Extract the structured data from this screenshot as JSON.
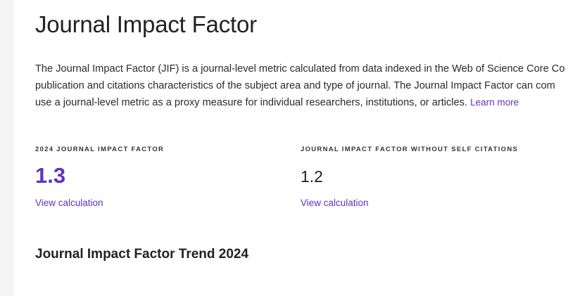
{
  "header": {
    "title": "Journal Impact Factor"
  },
  "description": {
    "line1": "The Journal Impact Factor (JIF) is a journal-level metric calculated from data indexed in the Web of Science Core Co",
    "line2": "publication and citations characteristics of the subject area and type of journal. The Journal Impact Factor can com",
    "line3": "use a journal-level metric as a proxy measure for individual researchers, institutions, or articles.",
    "learn_more": "Learn more"
  },
  "metrics": {
    "jif": {
      "label": "2024 JOURNAL IMPACT FACTOR",
      "value": "1.3",
      "link": "View calculation"
    },
    "jif_no_self": {
      "label": "JOURNAL IMPACT FACTOR WITHOUT SELF CITATIONS",
      "value": "1.2",
      "link": "View calculation"
    }
  },
  "trend": {
    "heading": "Journal Impact Factor Trend 2024"
  },
  "colors": {
    "accent": "#5e33bf",
    "sidebar": "#f5f5f6",
    "text": "#222222"
  }
}
